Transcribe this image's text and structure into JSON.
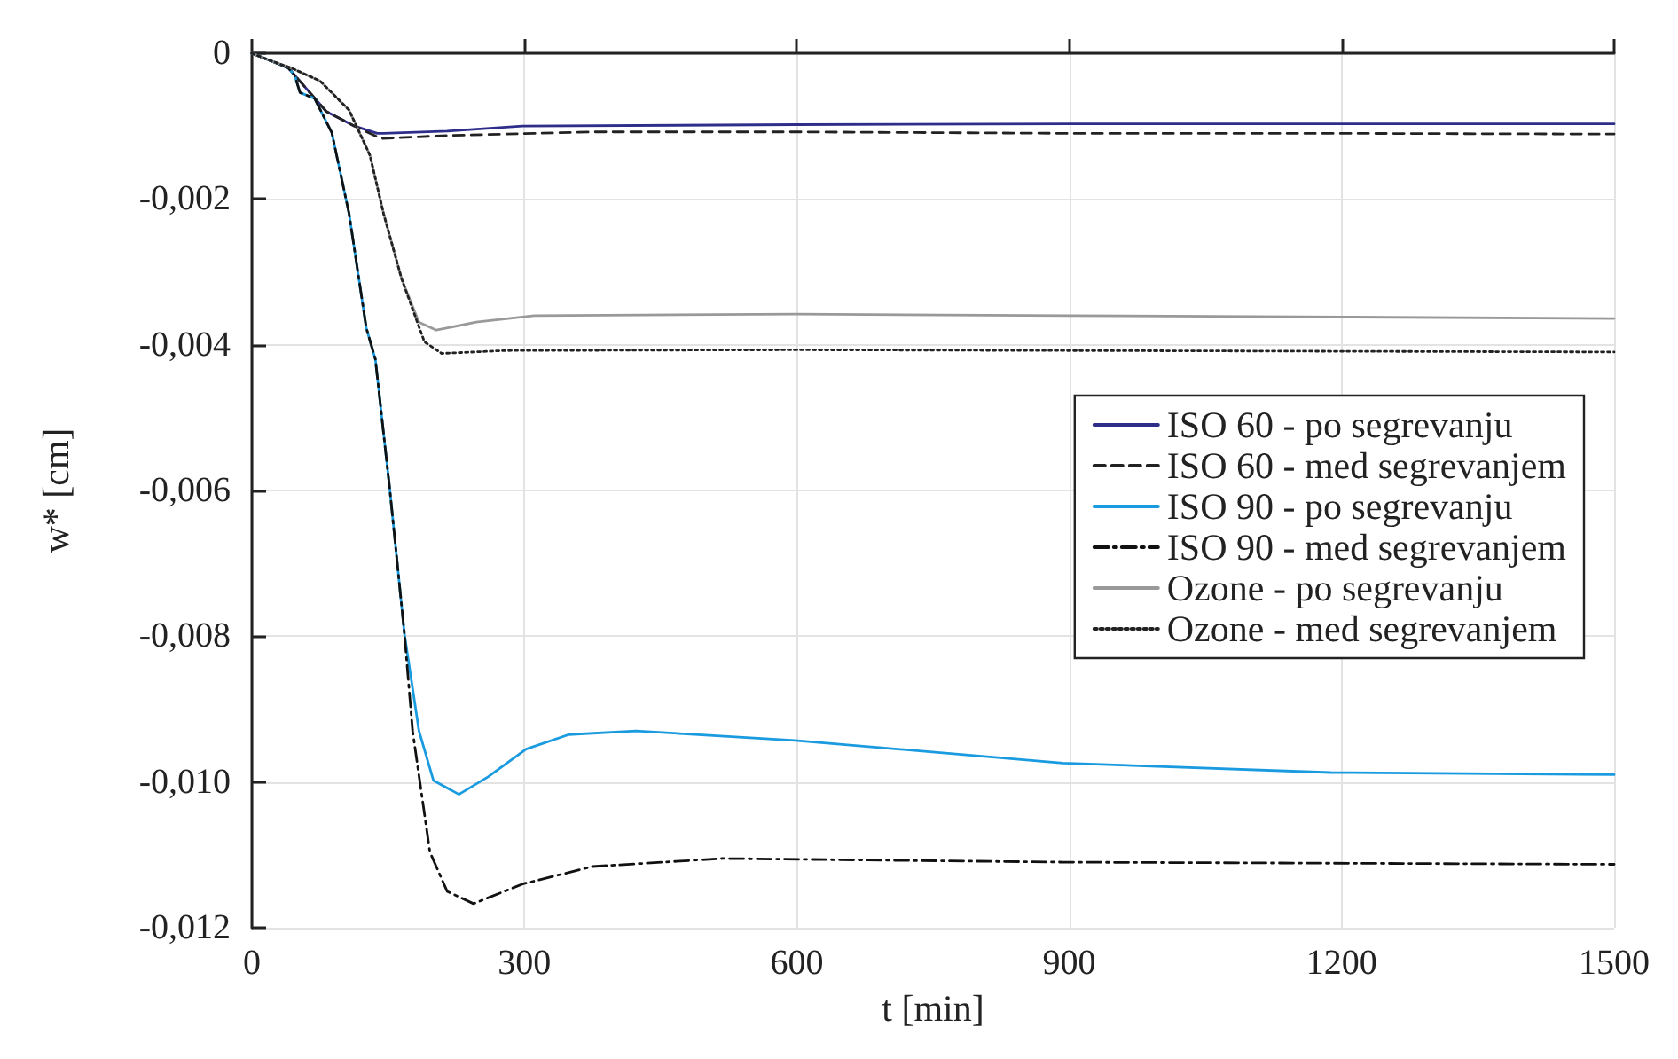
{
  "chart_data": {
    "type": "line",
    "xlabel": "t [min]",
    "ylabel": "w* [cm]",
    "xlim": [
      0,
      1500
    ],
    "xticks": [
      0,
      300,
      600,
      900,
      1200,
      1500
    ],
    "ylim": [
      -0.012,
      0
    ],
    "yticks": [
      {
        "value": -0.012,
        "label": "-0,012"
      },
      {
        "value": -0.01,
        "label": "-0,010"
      },
      {
        "value": -0.008,
        "label": "-0,008"
      },
      {
        "value": -0.006,
        "label": "-0,006"
      },
      {
        "value": -0.004,
        "label": "-0,004"
      },
      {
        "value": -0.002,
        "label": "-0,002"
      },
      0
    ],
    "grid": true,
    "legend": "right",
    "marker": "none",
    "series": [
      {
        "name": "ISO 60 - po segrevanju",
        "color": "#2e2e8a",
        "line_style": "solid",
        "x": [
          0,
          20,
          40,
          47,
          82,
          113,
          138,
          145,
          215,
          298,
          600,
          900,
          1200,
          1500
        ],
        "values": [
          0,
          -0.0001,
          -0.0002,
          -0.0003,
          -0.0008,
          -0.001,
          -0.0011,
          -0.0011,
          -0.00107,
          -0.001,
          -0.00098,
          -0.00097,
          -0.00097,
          -0.00097
        ]
      },
      {
        "name": "ISO 60 - med segrevanjem",
        "color": "#222222",
        "line_style": "dashed",
        "x": [
          0,
          20,
          40,
          47,
          82,
          113,
          142,
          215,
          375,
          600,
          900,
          1200,
          1500
        ],
        "values": [
          0,
          -0.0001,
          -0.0002,
          -0.0003,
          -0.0008,
          -0.001,
          -0.00117,
          -0.00113,
          -0.00108,
          -0.00108,
          -0.0011,
          -0.0011,
          -0.00111
        ]
      },
      {
        "name": "ISO 90 - po segrevanju",
        "color": "#1a9be0",
        "line_style": "solid",
        "x": [
          0,
          20,
          40,
          47,
          53,
          69,
          88,
          107,
          126,
          136,
          152,
          168,
          184,
          200,
          228,
          260,
          302,
          349,
          423,
          598,
          893,
          1188,
          1500
        ],
        "values": [
          0,
          -0.0001,
          -0.0002,
          -0.0003,
          -0.00054,
          -0.00062,
          -0.00109,
          -0.0022,
          -0.00377,
          -0.0042,
          -0.006,
          -0.00797,
          -0.0093,
          -0.00998,
          -0.01017,
          -0.00993,
          -0.00955,
          -0.00935,
          -0.0093,
          -0.00943,
          -0.00974,
          -0.00987,
          -0.0099
        ]
      },
      {
        "name": "ISO 90 - med segrevanjem",
        "color": "#111111",
        "line_style": "dashdot",
        "x": [
          0,
          20,
          40,
          47,
          53,
          69,
          88,
          107,
          126,
          136,
          152,
          168,
          177,
          196,
          215,
          244,
          298,
          375,
          518,
          893,
          1500
        ],
        "values": [
          0,
          -0.0001,
          -0.0002,
          -0.0003,
          -0.00054,
          -0.00062,
          -0.00109,
          -0.0022,
          -0.00377,
          -0.0042,
          -0.006,
          -0.00797,
          -0.0093,
          -0.01096,
          -0.0115,
          -0.01167,
          -0.0114,
          -0.01116,
          -0.01105,
          -0.0111,
          -0.01113
        ]
      },
      {
        "name": "Ozone - po segrevanju",
        "color": "#999999",
        "line_style": "solid",
        "x": [
          0,
          20,
          43,
          75,
          107,
          130,
          145,
          165,
          184,
          203,
          247,
          311,
          600,
          900,
          1200,
          1500
        ],
        "values": [
          0,
          -0.0001,
          -0.0002,
          -0.00038,
          -0.00078,
          -0.0014,
          -0.0022,
          -0.0031,
          -0.00369,
          -0.0038,
          -0.00369,
          -0.0036,
          -0.00358,
          -0.0036,
          -0.00362,
          -0.00364
        ]
      },
      {
        "name": "Ozone - med segrevanjem",
        "color": "#222222",
        "line_style": "dotted",
        "x": [
          0,
          20,
          43,
          75,
          107,
          130,
          145,
          165,
          190,
          209,
          279,
          600,
          900,
          1200,
          1500
        ],
        "values": [
          0,
          -0.0001,
          -0.0002,
          -0.00038,
          -0.00078,
          -0.0014,
          -0.0022,
          -0.0031,
          -0.00396,
          -0.00412,
          -0.00408,
          -0.00407,
          -0.00408,
          -0.00409,
          -0.0041
        ]
      }
    ]
  }
}
